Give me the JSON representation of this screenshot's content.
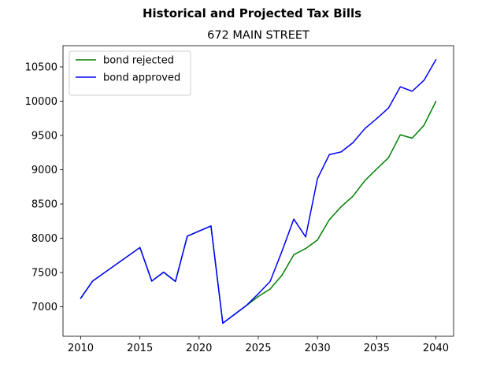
{
  "chart_data": {
    "type": "line",
    "suptitle": "Historical and Projected Tax Bills",
    "title": "672 MAIN STREET",
    "xlabel": "",
    "ylabel": "",
    "xlim": [
      2008.5,
      2041.5
    ],
    "ylim": [
      6570,
      10810
    ],
    "xticks": [
      2010,
      2015,
      2020,
      2025,
      2030,
      2035,
      2040
    ],
    "yticks": [
      7000,
      7500,
      8000,
      8500,
      9000,
      9500,
      10000,
      10500
    ],
    "grid": false,
    "legend_position": "top-left",
    "series": [
      {
        "name": "bond rejected",
        "color": "#008000",
        "x": [
          2010,
          2011,
          2015,
          2016,
          2017,
          2018,
          2019,
          2021,
          2022,
          2023,
          2024,
          2025,
          2026,
          2027,
          2028,
          2029,
          2030,
          2031,
          2032,
          2033,
          2034,
          2035,
          2036,
          2037,
          2038,
          2039,
          2040
        ],
        "y": [
          7125,
          7375,
          7865,
          7375,
          7505,
          7370,
          8030,
          8180,
          6760,
          6890,
          7020,
          7150,
          7260,
          7460,
          7760,
          7850,
          7975,
          8270,
          8460,
          8615,
          8840,
          9010,
          9175,
          9510,
          9460,
          9650,
          9995
        ]
      },
      {
        "name": "bond approved",
        "color": "#0000ff",
        "x": [
          2010,
          2011,
          2015,
          2016,
          2017,
          2018,
          2019,
          2021,
          2022,
          2023,
          2024,
          2025,
          2026,
          2027,
          2028,
          2029,
          2030,
          2031,
          2032,
          2033,
          2034,
          2035,
          2036,
          2037,
          2038,
          2039,
          2040
        ],
        "y": [
          7125,
          7375,
          7865,
          7375,
          7505,
          7370,
          8030,
          8180,
          6760,
          6890,
          7020,
          7190,
          7370,
          7810,
          8280,
          8020,
          8870,
          9220,
          9260,
          9395,
          9600,
          9745,
          9900,
          10210,
          10145,
          10305,
          10605
        ]
      }
    ]
  }
}
